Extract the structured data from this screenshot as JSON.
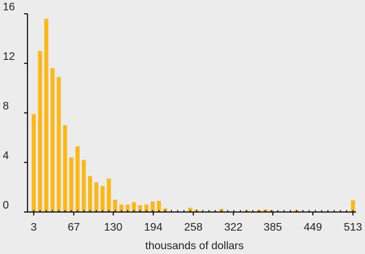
{
  "chart_data": {
    "type": "bar",
    "xlabel": "thousands of dollars",
    "ylabel": "",
    "title": "",
    "ylim": [
      0,
      16
    ],
    "xlim": [
      -7,
      518
    ],
    "bin_width": 10,
    "yticks": [
      0,
      4,
      8,
      12,
      16
    ],
    "xticks": [
      3,
      67,
      130,
      194,
      258,
      322,
      385,
      449,
      513
    ],
    "bar_color": "#fbb81b",
    "axis_color": "#000000",
    "grid": false,
    "x": [
      3,
      13,
      23,
      33,
      43,
      53,
      63,
      73,
      83,
      93,
      103,
      113,
      123,
      133,
      143,
      153,
      163,
      173,
      183,
      193,
      203,
      213,
      223,
      233,
      243,
      253,
      263,
      273,
      283,
      293,
      303,
      313,
      323,
      333,
      343,
      353,
      363,
      373,
      383,
      393,
      403,
      413,
      423,
      433,
      443,
      453,
      463,
      473,
      483,
      493,
      503,
      513
    ],
    "values": [
      7.9,
      13.0,
      15.6,
      11.6,
      10.9,
      7.0,
      4.4,
      5.3,
      4.2,
      2.9,
      2.4,
      2.1,
      2.7,
      1.0,
      0.6,
      0.6,
      0.8,
      0.55,
      0.6,
      0.85,
      0.9,
      0.3,
      0.05,
      0.05,
      0.0,
      0.35,
      0.2,
      0.05,
      0.05,
      0.05,
      0.25,
      0.05,
      0.0,
      0.0,
      0.15,
      0.05,
      0.15,
      0.2,
      0.15,
      0.05,
      0.0,
      0.0,
      0.15,
      0.0,
      0.0,
      0.0,
      0.0,
      0.0,
      0.0,
      0.0,
      0.0,
      0.95
    ]
  }
}
